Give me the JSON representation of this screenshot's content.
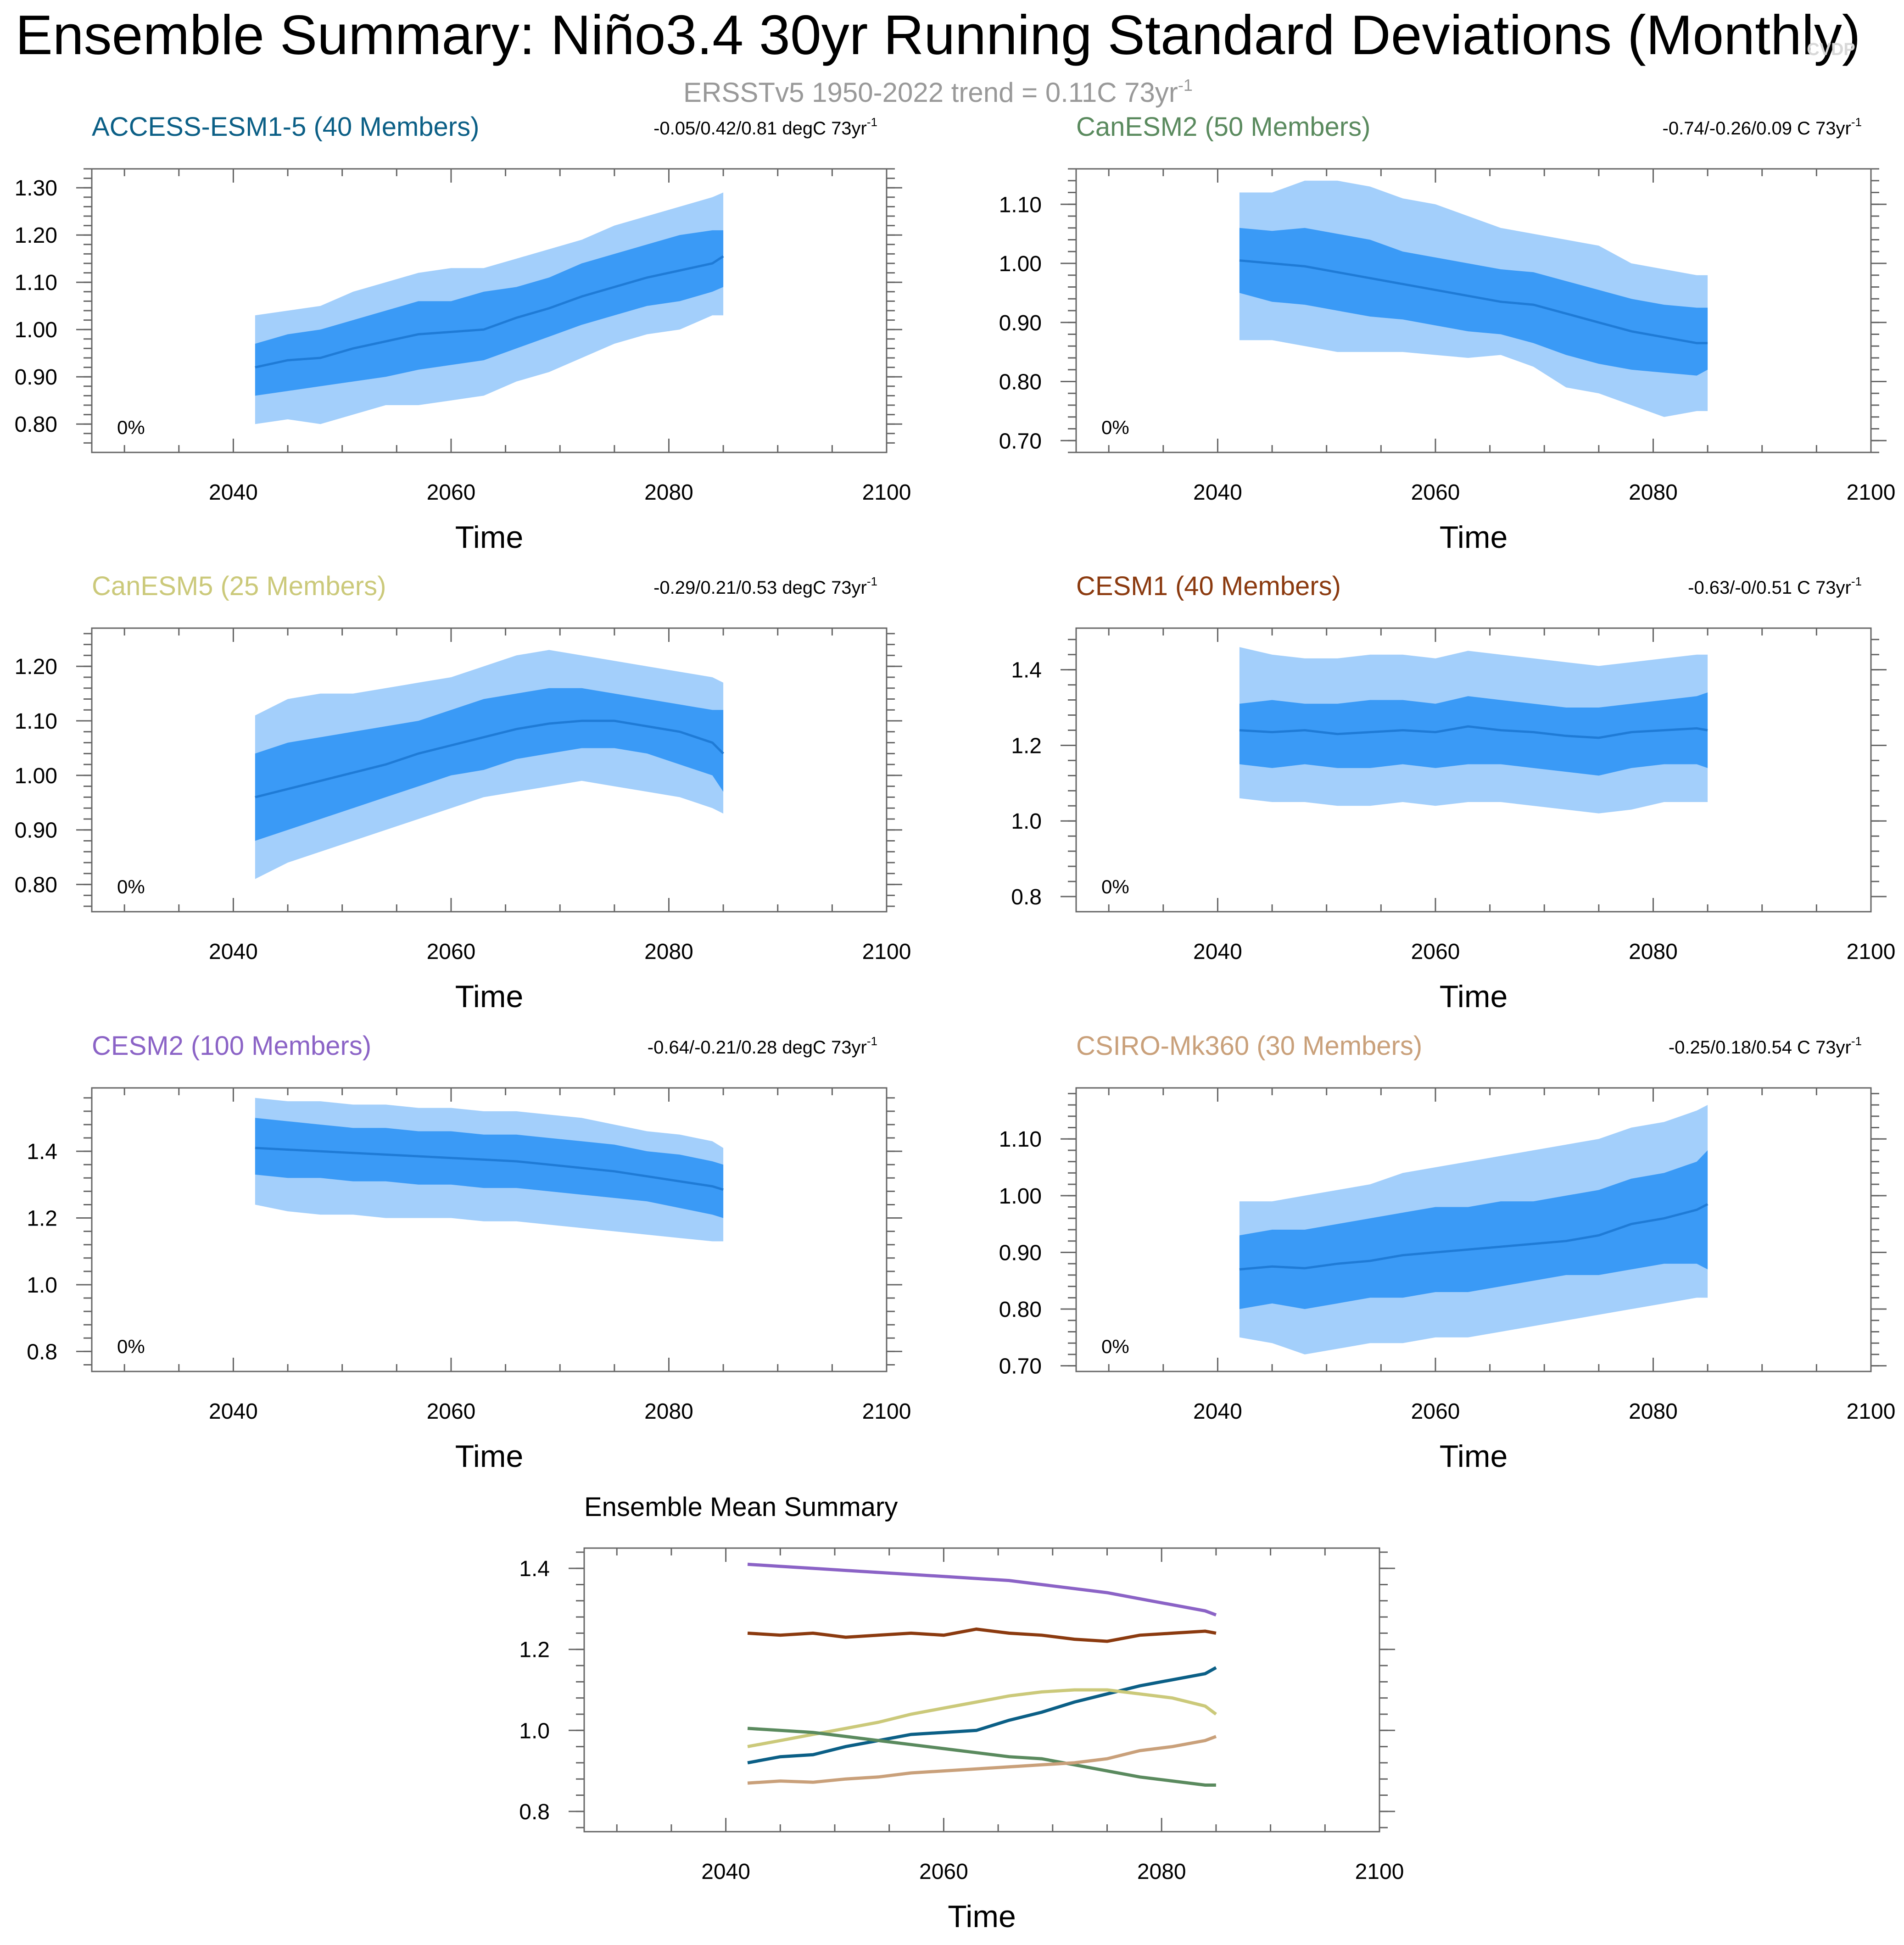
{
  "figure": {
    "title": "Ensemble Summary: Niño3.4 30yr Running Standard Deviations (Monthly)",
    "subtitle": "ERSSTv5 1950-2022 trend = 0.11C 73yr",
    "subtitle_sup": "-1",
    "watermark": "CVDP"
  },
  "colors": {
    "band_outer": "#a3cffb",
    "band_inner": "#3a9af6",
    "mean_line": "#1f7bd6",
    "frame": "#666666",
    "label_text": "#000000"
  },
  "chart_data": [
    {
      "type": "area",
      "name": "ACCESS-ESM1-5 (40 Members)",
      "title_color": "#0b5f86",
      "trend_label": "-0.05/0.42/0.81 degC 73yr",
      "trend_sup": "-1",
      "percent_label": "0%",
      "xlabel": "Time",
      "ylabel": "",
      "xlim": [
        2027,
        2100
      ],
      "ylim": [
        0.74,
        1.34
      ],
      "xticks": [
        2040,
        2060,
        2080,
        2100
      ],
      "yticks": [
        0.8,
        0.9,
        1.0,
        1.1,
        1.2,
        1.3
      ],
      "ytick_labels": [
        "0.80",
        "0.90",
        "1.00",
        "1.10",
        "1.20",
        "1.30"
      ],
      "x": [
        2042,
        2045,
        2048,
        2051,
        2054,
        2057,
        2060,
        2063,
        2066,
        2069,
        2072,
        2075,
        2078,
        2081,
        2084,
        2085
      ],
      "mean": [
        0.92,
        0.935,
        0.94,
        0.96,
        0.975,
        0.99,
        0.995,
        1.0,
        1.025,
        1.045,
        1.07,
        1.09,
        1.11,
        1.125,
        1.14,
        1.155
      ],
      "inner_low": [
        0.86,
        0.87,
        0.88,
        0.89,
        0.9,
        0.915,
        0.925,
        0.935,
        0.96,
        0.985,
        1.01,
        1.03,
        1.05,
        1.06,
        1.08,
        1.09
      ],
      "inner_high": [
        0.97,
        0.99,
        1.0,
        1.02,
        1.04,
        1.06,
        1.06,
        1.08,
        1.09,
        1.11,
        1.14,
        1.16,
        1.18,
        1.2,
        1.21,
        1.21
      ],
      "outer_low": [
        0.8,
        0.81,
        0.8,
        0.82,
        0.84,
        0.84,
        0.85,
        0.86,
        0.89,
        0.91,
        0.94,
        0.97,
        0.99,
        1.0,
        1.03,
        1.03
      ],
      "outer_high": [
        1.03,
        1.04,
        1.05,
        1.08,
        1.1,
        1.12,
        1.13,
        1.13,
        1.15,
        1.17,
        1.19,
        1.22,
        1.24,
        1.26,
        1.28,
        1.29
      ]
    },
    {
      "type": "area",
      "name": "CanESM2 (50 Members)",
      "title_color": "#5a8a5e",
      "trend_label": "-0.74/-0.26/0.09 C 73yr",
      "trend_sup": "-1",
      "percent_label": "0%",
      "xlabel": "Time",
      "ylabel": "",
      "xlim": [
        2027,
        2100
      ],
      "ylim": [
        0.68,
        1.16
      ],
      "xticks": [
        2040,
        2060,
        2080,
        2100
      ],
      "yticks": [
        0.7,
        0.8,
        0.9,
        1.0,
        1.1
      ],
      "ytick_labels": [
        "0.70",
        "0.80",
        "0.90",
        "1.00",
        "1.10"
      ],
      "x": [
        2042,
        2045,
        2048,
        2051,
        2054,
        2057,
        2060,
        2063,
        2066,
        2069,
        2072,
        2075,
        2078,
        2081,
        2084,
        2085
      ],
      "mean": [
        1.005,
        1.0,
        0.995,
        0.985,
        0.975,
        0.965,
        0.955,
        0.945,
        0.935,
        0.93,
        0.915,
        0.9,
        0.885,
        0.875,
        0.865,
        0.865
      ],
      "inner_low": [
        0.95,
        0.935,
        0.93,
        0.92,
        0.91,
        0.905,
        0.895,
        0.885,
        0.88,
        0.865,
        0.845,
        0.83,
        0.82,
        0.815,
        0.81,
        0.82
      ],
      "inner_high": [
        1.06,
        1.055,
        1.06,
        1.05,
        1.04,
        1.02,
        1.01,
        1.0,
        0.99,
        0.985,
        0.97,
        0.955,
        0.94,
        0.93,
        0.925,
        0.925
      ],
      "outer_low": [
        0.87,
        0.87,
        0.86,
        0.85,
        0.85,
        0.85,
        0.845,
        0.84,
        0.845,
        0.825,
        0.79,
        0.78,
        0.76,
        0.74,
        0.75,
        0.75
      ],
      "outer_high": [
        1.12,
        1.12,
        1.14,
        1.14,
        1.13,
        1.11,
        1.1,
        1.08,
        1.06,
        1.05,
        1.04,
        1.03,
        1.0,
        0.99,
        0.98,
        0.98
      ]
    },
    {
      "type": "area",
      "name": "CanESM5 (25 Members)",
      "title_color": "#cbc97a",
      "trend_label": "-0.29/0.21/0.53 degC 73yr",
      "trend_sup": "-1",
      "percent_label": "0%",
      "xlabel": "Time",
      "ylabel": "",
      "xlim": [
        2027,
        2100
      ],
      "ylim": [
        0.75,
        1.27
      ],
      "xticks": [
        2040,
        2060,
        2080,
        2100
      ],
      "yticks": [
        0.8,
        0.9,
        1.0,
        1.1,
        1.2
      ],
      "ytick_labels": [
        "0.80",
        "0.90",
        "1.00",
        "1.10",
        "1.20"
      ],
      "x": [
        2042,
        2045,
        2048,
        2051,
        2054,
        2057,
        2060,
        2063,
        2066,
        2069,
        2072,
        2075,
        2078,
        2081,
        2084,
        2085
      ],
      "mean": [
        0.96,
        0.975,
        0.99,
        1.005,
        1.02,
        1.04,
        1.055,
        1.07,
        1.085,
        1.095,
        1.1,
        1.1,
        1.09,
        1.08,
        1.06,
        1.04
      ],
      "inner_low": [
        0.88,
        0.9,
        0.92,
        0.94,
        0.96,
        0.98,
        1.0,
        1.01,
        1.03,
        1.04,
        1.05,
        1.05,
        1.04,
        1.02,
        1.0,
        0.97
      ],
      "inner_high": [
        1.04,
        1.06,
        1.07,
        1.08,
        1.09,
        1.1,
        1.12,
        1.14,
        1.15,
        1.16,
        1.16,
        1.15,
        1.14,
        1.13,
        1.12,
        1.12
      ],
      "outer_low": [
        0.81,
        0.84,
        0.86,
        0.88,
        0.9,
        0.92,
        0.94,
        0.96,
        0.97,
        0.98,
        0.99,
        0.98,
        0.97,
        0.96,
        0.94,
        0.93
      ],
      "outer_high": [
        1.11,
        1.14,
        1.15,
        1.15,
        1.16,
        1.17,
        1.18,
        1.2,
        1.22,
        1.23,
        1.22,
        1.21,
        1.2,
        1.19,
        1.18,
        1.17
      ]
    },
    {
      "type": "area",
      "name": "CESM1 (40 Members)",
      "title_color": "#8b3a0f",
      "trend_label": "-0.63/-0/0.51 C 73yr",
      "trend_sup": "-1",
      "percent_label": "0%",
      "xlabel": "Time",
      "ylabel": "",
      "xlim": [
        2027,
        2100
      ],
      "ylim": [
        0.76,
        1.51
      ],
      "xticks": [
        2040,
        2060,
        2080,
        2100
      ],
      "yticks": [
        0.8,
        1.0,
        1.2,
        1.4
      ],
      "ytick_labels": [
        "0.8",
        "1.0",
        "1.2",
        "1.4"
      ],
      "x": [
        2042,
        2045,
        2048,
        2051,
        2054,
        2057,
        2060,
        2063,
        2066,
        2069,
        2072,
        2075,
        2078,
        2081,
        2084,
        2085
      ],
      "mean": [
        1.24,
        1.235,
        1.24,
        1.23,
        1.235,
        1.24,
        1.235,
        1.25,
        1.24,
        1.235,
        1.225,
        1.22,
        1.235,
        1.24,
        1.245,
        1.24
      ],
      "inner_low": [
        1.15,
        1.14,
        1.15,
        1.14,
        1.14,
        1.15,
        1.14,
        1.15,
        1.15,
        1.14,
        1.13,
        1.12,
        1.14,
        1.15,
        1.15,
        1.14
      ],
      "inner_high": [
        1.31,
        1.32,
        1.31,
        1.31,
        1.32,
        1.32,
        1.31,
        1.33,
        1.32,
        1.31,
        1.3,
        1.3,
        1.31,
        1.32,
        1.33,
        1.34
      ],
      "outer_low": [
        1.06,
        1.05,
        1.05,
        1.04,
        1.04,
        1.05,
        1.04,
        1.05,
        1.05,
        1.04,
        1.03,
        1.02,
        1.03,
        1.05,
        1.05,
        1.05
      ],
      "outer_high": [
        1.46,
        1.44,
        1.43,
        1.43,
        1.44,
        1.44,
        1.43,
        1.45,
        1.44,
        1.43,
        1.42,
        1.41,
        1.42,
        1.43,
        1.44,
        1.44
      ]
    },
    {
      "type": "area",
      "name": "CESM2 (100 Members)",
      "title_color": "#8b63c6",
      "trend_label": "-0.64/-0.21/0.28 degC 73yr",
      "trend_sup": "-1",
      "percent_label": "0%",
      "xlabel": "Time",
      "ylabel": "",
      "xlim": [
        2027,
        2100
      ],
      "ylim": [
        0.74,
        1.59
      ],
      "xticks": [
        2040,
        2060,
        2080,
        2100
      ],
      "yticks": [
        0.8,
        1.0,
        1.2,
        1.4
      ],
      "ytick_labels": [
        "0.8",
        "1.0",
        "1.2",
        "1.4"
      ],
      "x": [
        2042,
        2045,
        2048,
        2051,
        2054,
        2057,
        2060,
        2063,
        2066,
        2069,
        2072,
        2075,
        2078,
        2081,
        2084,
        2085
      ],
      "mean": [
        1.41,
        1.405,
        1.4,
        1.395,
        1.39,
        1.385,
        1.38,
        1.375,
        1.37,
        1.36,
        1.35,
        1.34,
        1.325,
        1.31,
        1.295,
        1.285
      ],
      "inner_low": [
        1.33,
        1.32,
        1.32,
        1.31,
        1.31,
        1.3,
        1.3,
        1.29,
        1.29,
        1.28,
        1.27,
        1.26,
        1.25,
        1.23,
        1.21,
        1.2
      ],
      "inner_high": [
        1.5,
        1.49,
        1.48,
        1.47,
        1.47,
        1.46,
        1.46,
        1.45,
        1.45,
        1.44,
        1.43,
        1.42,
        1.4,
        1.39,
        1.37,
        1.36
      ],
      "outer_low": [
        1.24,
        1.22,
        1.21,
        1.21,
        1.2,
        1.2,
        1.2,
        1.19,
        1.19,
        1.18,
        1.17,
        1.16,
        1.15,
        1.14,
        1.13,
        1.13
      ],
      "outer_high": [
        1.56,
        1.55,
        1.55,
        1.54,
        1.54,
        1.53,
        1.53,
        1.52,
        1.52,
        1.51,
        1.5,
        1.48,
        1.46,
        1.45,
        1.43,
        1.41
      ]
    },
    {
      "type": "area",
      "name": "CSIRO-Mk360 (30 Members)",
      "title_color": "#c9a07a",
      "trend_label": "-0.25/0.18/0.54 C 73yr",
      "trend_sup": "-1",
      "percent_label": "0%",
      "xlabel": "Time",
      "ylabel": "",
      "xlim": [
        2027,
        2100
      ],
      "ylim": [
        0.69,
        1.19
      ],
      "xticks": [
        2040,
        2060,
        2080,
        2100
      ],
      "yticks": [
        0.7,
        0.8,
        0.9,
        1.0,
        1.1
      ],
      "ytick_labels": [
        "0.70",
        "0.80",
        "0.90",
        "1.00",
        "1.10"
      ],
      "x": [
        2042,
        2045,
        2048,
        2051,
        2054,
        2057,
        2060,
        2063,
        2066,
        2069,
        2072,
        2075,
        2078,
        2081,
        2084,
        2085
      ],
      "mean": [
        0.87,
        0.875,
        0.872,
        0.88,
        0.885,
        0.895,
        0.9,
        0.905,
        0.91,
        0.915,
        0.92,
        0.93,
        0.95,
        0.96,
        0.975,
        0.985
      ],
      "inner_low": [
        0.8,
        0.81,
        0.8,
        0.81,
        0.82,
        0.82,
        0.83,
        0.83,
        0.84,
        0.85,
        0.86,
        0.86,
        0.87,
        0.88,
        0.88,
        0.87
      ],
      "inner_high": [
        0.93,
        0.94,
        0.94,
        0.95,
        0.96,
        0.97,
        0.98,
        0.98,
        0.99,
        0.99,
        1.0,
        1.01,
        1.03,
        1.04,
        1.06,
        1.08
      ],
      "outer_low": [
        0.75,
        0.74,
        0.72,
        0.73,
        0.74,
        0.74,
        0.75,
        0.75,
        0.76,
        0.77,
        0.78,
        0.79,
        0.8,
        0.81,
        0.82,
        0.82
      ],
      "outer_high": [
        0.99,
        0.99,
        1.0,
        1.01,
        1.02,
        1.04,
        1.05,
        1.06,
        1.07,
        1.08,
        1.09,
        1.1,
        1.12,
        1.13,
        1.15,
        1.16
      ]
    },
    {
      "type": "line",
      "name": "Ensemble Mean Summary",
      "xlabel": "Time",
      "ylabel": "",
      "xlim": [
        2027,
        2100
      ],
      "ylim": [
        0.75,
        1.45
      ],
      "xticks": [
        2040,
        2060,
        2080,
        2100
      ],
      "yticks": [
        0.8,
        1.0,
        1.2,
        1.4
      ],
      "ytick_labels": [
        "0.8",
        "1.0",
        "1.2",
        "1.4"
      ],
      "x": [
        2042,
        2045,
        2048,
        2051,
        2054,
        2057,
        2060,
        2063,
        2066,
        2069,
        2072,
        2075,
        2078,
        2081,
        2084,
        2085
      ],
      "series": [
        {
          "name": "CESM2",
          "color": "#8b63c6",
          "values": [
            1.41,
            1.405,
            1.4,
            1.395,
            1.39,
            1.385,
            1.38,
            1.375,
            1.37,
            1.36,
            1.35,
            1.34,
            1.325,
            1.31,
            1.295,
            1.285
          ]
        },
        {
          "name": "CESM1",
          "color": "#8b3a0f",
          "values": [
            1.24,
            1.235,
            1.24,
            1.23,
            1.235,
            1.24,
            1.235,
            1.25,
            1.24,
            1.235,
            1.225,
            1.22,
            1.235,
            1.24,
            1.245,
            1.24
          ]
        },
        {
          "name": "ACCESS-ESM1-5",
          "color": "#0b5f86",
          "values": [
            0.92,
            0.935,
            0.94,
            0.96,
            0.975,
            0.99,
            0.995,
            1.0,
            1.025,
            1.045,
            1.07,
            1.09,
            1.11,
            1.125,
            1.14,
            1.155
          ]
        },
        {
          "name": "CanESM5",
          "color": "#cbc97a",
          "values": [
            0.96,
            0.975,
            0.99,
            1.005,
            1.02,
            1.04,
            1.055,
            1.07,
            1.085,
            1.095,
            1.1,
            1.1,
            1.09,
            1.08,
            1.06,
            1.04
          ]
        },
        {
          "name": "CanESM2",
          "color": "#5a8a5e",
          "values": [
            1.005,
            1.0,
            0.995,
            0.985,
            0.975,
            0.965,
            0.955,
            0.945,
            0.935,
            0.93,
            0.915,
            0.9,
            0.885,
            0.875,
            0.865,
            0.865
          ]
        },
        {
          "name": "CSIRO-Mk360",
          "color": "#c9a07a",
          "values": [
            0.87,
            0.875,
            0.872,
            0.88,
            0.885,
            0.895,
            0.9,
            0.905,
            0.91,
            0.915,
            0.92,
            0.93,
            0.95,
            0.96,
            0.975,
            0.985
          ]
        }
      ]
    }
  ]
}
